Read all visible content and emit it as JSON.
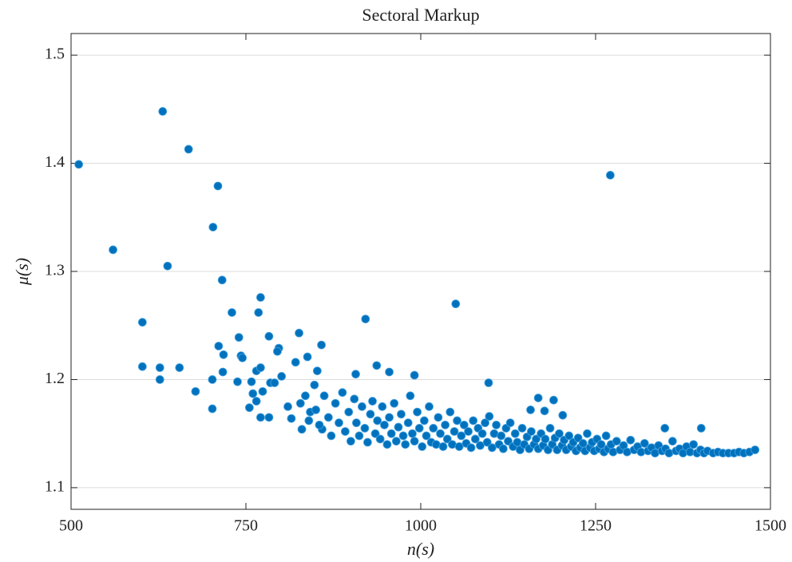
{
  "chart_data": {
    "type": "scatter",
    "title": "Sectoral Markup",
    "x_label": "n(s)",
    "y_label": "μ(s)",
    "color": "#0072BD",
    "grid": true,
    "xlim": [
      500,
      1500
    ],
    "xticks": [
      500,
      750,
      1000,
      1250,
      1500
    ],
    "ylim": [
      1.08,
      1.52
    ],
    "yticks": [
      1.1,
      1.2,
      1.3,
      1.4,
      1.5
    ],
    "x": [
      511,
      560,
      631,
      668,
      638,
      710,
      703,
      716,
      602,
      602,
      627,
      627,
      655,
      678,
      702,
      702,
      730,
      771,
      768,
      740,
      743,
      745,
      711,
      718,
      717,
      738,
      921,
      1050,
      1271,
      1097,
      937,
      955,
      991,
      907,
      826,
      838,
      858,
      783,
      797,
      795,
      821,
      801,
      765,
      771,
      785,
      791,
      758,
      760,
      774,
      765,
      755,
      771,
      783,
      810,
      815,
      830,
      859,
      1349,
      1401,
      1168,
      1190,
      1177,
      1203,
      1157,
      835,
      842,
      848,
      852,
      840,
      828,
      850,
      855,
      862,
      868,
      872,
      878,
      883,
      888,
      892,
      897,
      900,
      905,
      908,
      912,
      916,
      920,
      924,
      928,
      931,
      935,
      938,
      942,
      945,
      948,
      952,
      955,
      958,
      962,
      965,
      968,
      972,
      975,
      978,
      982,
      985,
      988,
      991,
      995,
      998,
      1002,
      1005,
      1008,
      1012,
      1015,
      1018,
      1022,
      1025,
      1028,
      1032,
      1035,
      1038,
      1042,
      1045,
      1048,
      1052,
      1055,
      1058,
      1062,
      1065,
      1068,
      1072,
      1075,
      1078,
      1082,
      1085,
      1088,
      1092,
      1095,
      1098,
      1102,
      1105,
      1108,
      1112,
      1115,
      1118,
      1122,
      1125,
      1128,
      1132,
      1135,
      1138,
      1142,
      1145,
      1148,
      1152,
      1155,
      1158,
      1162,
      1165,
      1168,
      1172,
      1175,
      1178,
      1182,
      1185,
      1188,
      1192,
      1195,
      1198,
      1202,
      1205,
      1208,
      1212,
      1215,
      1218,
      1222,
      1225,
      1228,
      1232,
      1235,
      1238,
      1242,
      1245,
      1248,
      1252,
      1255,
      1258,
      1262,
      1265,
      1268,
      1272,
      1275,
      1280,
      1285,
      1290,
      1295,
      1300,
      1305,
      1310,
      1315,
      1320,
      1325,
      1330,
      1335,
      1340,
      1345,
      1350,
      1355,
      1360,
      1365,
      1370,
      1375,
      1380,
      1385,
      1390,
      1395,
      1400,
      1405,
      1410,
      1418,
      1425,
      1432,
      1440,
      1448,
      1455,
      1462,
      1470,
      1478
    ],
    "values": [
      1.399,
      1.32,
      1.448,
      1.413,
      1.305,
      1.379,
      1.341,
      1.292,
      1.253,
      1.212,
      1.211,
      1.2,
      1.211,
      1.189,
      1.2,
      1.173,
      1.262,
      1.276,
      1.262,
      1.239,
      1.222,
      1.22,
      1.231,
      1.223,
      1.207,
      1.198,
      1.256,
      1.27,
      1.389,
      1.197,
      1.213,
      1.207,
      1.204,
      1.205,
      1.243,
      1.221,
      1.232,
      1.24,
      1.229,
      1.226,
      1.216,
      1.203,
      1.208,
      1.211,
      1.197,
      1.197,
      1.198,
      1.187,
      1.189,
      1.18,
      1.174,
      1.165,
      1.165,
      1.175,
      1.164,
      1.154,
      1.154,
      1.155,
      1.155,
      1.183,
      1.181,
      1.171,
      1.167,
      1.172,
      1.185,
      1.17,
      1.195,
      1.208,
      1.162,
      1.178,
      1.172,
      1.158,
      1.185,
      1.165,
      1.148,
      1.178,
      1.16,
      1.188,
      1.152,
      1.17,
      1.143,
      1.182,
      1.16,
      1.148,
      1.175,
      1.155,
      1.142,
      1.168,
      1.18,
      1.15,
      1.162,
      1.145,
      1.175,
      1.158,
      1.14,
      1.165,
      1.15,
      1.178,
      1.143,
      1.156,
      1.168,
      1.148,
      1.14,
      1.16,
      1.185,
      1.15,
      1.143,
      1.17,
      1.155,
      1.138,
      1.162,
      1.148,
      1.175,
      1.142,
      1.155,
      1.14,
      1.165,
      1.15,
      1.138,
      1.158,
      1.145,
      1.17,
      1.14,
      1.152,
      1.162,
      1.138,
      1.148,
      1.158,
      1.141,
      1.152,
      1.137,
      1.162,
      1.145,
      1.155,
      1.139,
      1.15,
      1.16,
      1.142,
      1.166,
      1.137,
      1.15,
      1.158,
      1.14,
      1.148,
      1.136,
      1.155,
      1.143,
      1.16,
      1.138,
      1.15,
      1.142,
      1.135,
      1.155,
      1.14,
      1.147,
      1.136,
      1.152,
      1.14,
      1.145,
      1.136,
      1.15,
      1.139,
      1.145,
      1.135,
      1.155,
      1.14,
      1.146,
      1.135,
      1.15,
      1.139,
      1.144,
      1.135,
      1.148,
      1.138,
      1.142,
      1.134,
      1.146,
      1.137,
      1.141,
      1.134,
      1.15,
      1.137,
      1.142,
      1.134,
      1.145,
      1.136,
      1.14,
      1.133,
      1.148,
      1.136,
      1.14,
      1.133,
      1.143,
      1.135,
      1.139,
      1.133,
      1.144,
      1.135,
      1.138,
      1.133,
      1.141,
      1.134,
      1.137,
      1.132,
      1.139,
      1.134,
      1.136,
      1.132,
      1.143,
      1.134,
      1.136,
      1.132,
      1.138,
      1.133,
      1.14,
      1.132,
      1.135,
      1.132,
      1.134,
      1.132,
      1.133,
      1.132,
      1.132,
      1.132,
      1.133,
      1.132,
      1.133,
      1.135
    ]
  }
}
